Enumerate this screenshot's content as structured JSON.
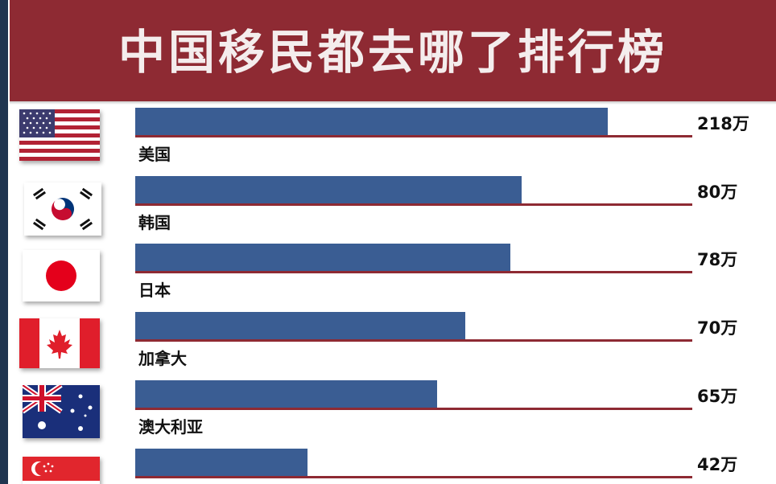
{
  "header": {
    "title": "中国移民都去哪了排行榜"
  },
  "colors": {
    "header_bg": "#8e2a33",
    "bar": "#3a5d93",
    "baseline": "#8e2a33"
  },
  "rows": [
    {
      "country": "美国",
      "value_label": "218万",
      "flag_icon": "usa-flag-icon"
    },
    {
      "country": "韩国",
      "value_label": "80万",
      "flag_icon": "south-korea-flag-icon"
    },
    {
      "country": "日本",
      "value_label": "78万",
      "flag_icon": "japan-flag-icon"
    },
    {
      "country": "加拿大",
      "value_label": "70万",
      "flag_icon": "canada-flag-icon"
    },
    {
      "country": "澳大利亚",
      "value_label": "65万",
      "flag_icon": "australia-flag-icon"
    },
    {
      "country": "",
      "value_label": "42万",
      "flag_icon": "singapore-flag-icon"
    }
  ],
  "chart_data": {
    "type": "bar",
    "title": "中国移民都去哪了排行榜",
    "categories": [
      "美国",
      "韩国",
      "日本",
      "加拿大",
      "澳大利亚",
      ""
    ],
    "values": [
      218,
      80,
      78,
      70,
      65,
      42
    ],
    "value_labels": [
      "218万",
      "80万",
      "78万",
      "70万",
      "65万",
      "42万"
    ],
    "orientation": "horizontal",
    "grid": false,
    "legend": "none"
  }
}
